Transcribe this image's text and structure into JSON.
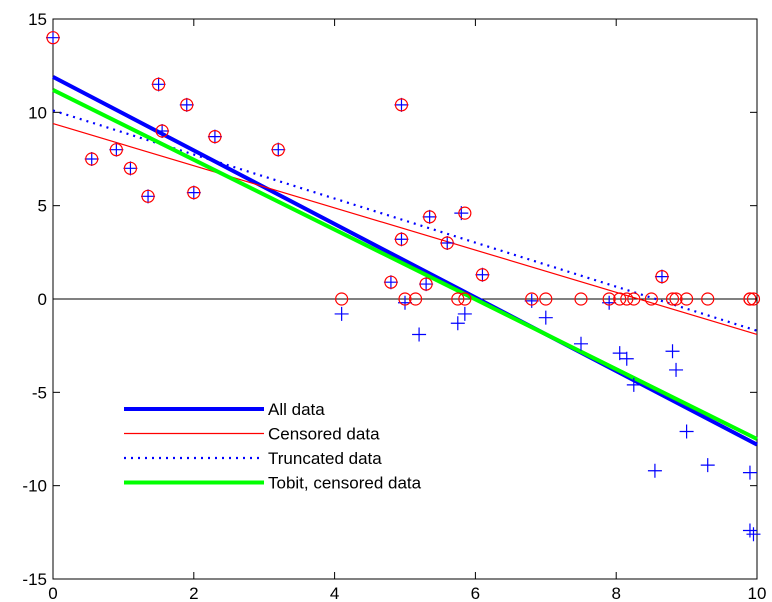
{
  "chart_data": {
    "type": "scatter",
    "xlim": [
      0,
      10
    ],
    "ylim": [
      -15,
      15
    ],
    "xticks": [
      0,
      2,
      4,
      6,
      8,
      10
    ],
    "yticks": [
      -15,
      -10,
      -5,
      0,
      5,
      10,
      15
    ],
    "grid": false,
    "legend_location": "lower-left",
    "reference_line": {
      "y": 0,
      "color": "#000000"
    },
    "plus_points": {
      "color": "#0000ff",
      "marker": "plus",
      "x": [
        0.0,
        0.55,
        0.9,
        1.1,
        1.35,
        1.5,
        1.55,
        1.9,
        2.0,
        2.3,
        3.2,
        4.1,
        4.8,
        4.95,
        4.95,
        5.0,
        5.2,
        5.3,
        5.35,
        5.6,
        5.75,
        5.8,
        5.85,
        6.1,
        6.8,
        7.0,
        7.5,
        7.9,
        8.05,
        8.15,
        8.25,
        8.55,
        8.65,
        8.8,
        8.85,
        9.0,
        9.3,
        9.9,
        9.9,
        9.95
      ],
      "y": [
        14.0,
        7.5,
        8.0,
        7.0,
        5.5,
        11.5,
        9.0,
        10.4,
        5.7,
        8.7,
        8.0,
        -0.8,
        0.9,
        10.4,
        3.2,
        -0.2,
        -1.9,
        0.8,
        4.4,
        3.0,
        -1.3,
        4.6,
        -0.8,
        1.3,
        -0.1,
        -1.0,
        -2.4,
        -0.2,
        -2.9,
        -3.2,
        -4.6,
        -9.2,
        1.2,
        -2.8,
        -3.8,
        -7.1,
        -8.9,
        -9.3,
        -12.4,
        -12.6
      ]
    },
    "circle_points": {
      "color": "#ff0000",
      "marker": "circle",
      "x": [
        0.0,
        0.55,
        0.9,
        1.1,
        1.35,
        1.5,
        1.55,
        1.9,
        2.0,
        2.3,
        3.2,
        4.1,
        4.8,
        4.95,
        4.95,
        5.0,
        5.15,
        5.3,
        5.35,
        5.6,
        5.75,
        5.85,
        5.85,
        6.1,
        6.8,
        7.0,
        7.5,
        7.9,
        8.05,
        8.15,
        8.25,
        8.5,
        8.65,
        8.8,
        8.85,
        9.0,
        9.3,
        9.9,
        9.9,
        9.95
      ],
      "y": [
        14.0,
        7.5,
        8.0,
        7.0,
        5.5,
        11.5,
        9.0,
        10.4,
        5.7,
        8.7,
        8.0,
        0.0,
        0.9,
        10.4,
        3.2,
        0.0,
        0.0,
        0.8,
        4.4,
        3.0,
        0.0,
        4.6,
        0.0,
        1.3,
        0.0,
        0.0,
        0.0,
        0.0,
        0.0,
        0.0,
        0.0,
        0.0,
        1.2,
        0.0,
        0.0,
        0.0,
        0.0,
        0.0,
        0.0,
        0.0
      ]
    },
    "series": [
      {
        "name": "All data",
        "color": "#0000ff",
        "style": "thick-solid",
        "x": [
          0,
          10
        ],
        "y": [
          11.9,
          -7.8
        ]
      },
      {
        "name": "Censored data",
        "color": "#ff0000",
        "style": "thin-solid",
        "x": [
          0,
          10
        ],
        "y": [
          9.4,
          -1.9
        ]
      },
      {
        "name": "Truncated data",
        "color": "#0000ff",
        "style": "dotted",
        "x": [
          0,
          10
        ],
        "y": [
          10.1,
          -1.7
        ]
      },
      {
        "name": "Tobit, censored data",
        "color": "#00ff00",
        "style": "thick-solid",
        "x": [
          0,
          10
        ],
        "y": [
          11.2,
          -7.5
        ]
      }
    ]
  }
}
